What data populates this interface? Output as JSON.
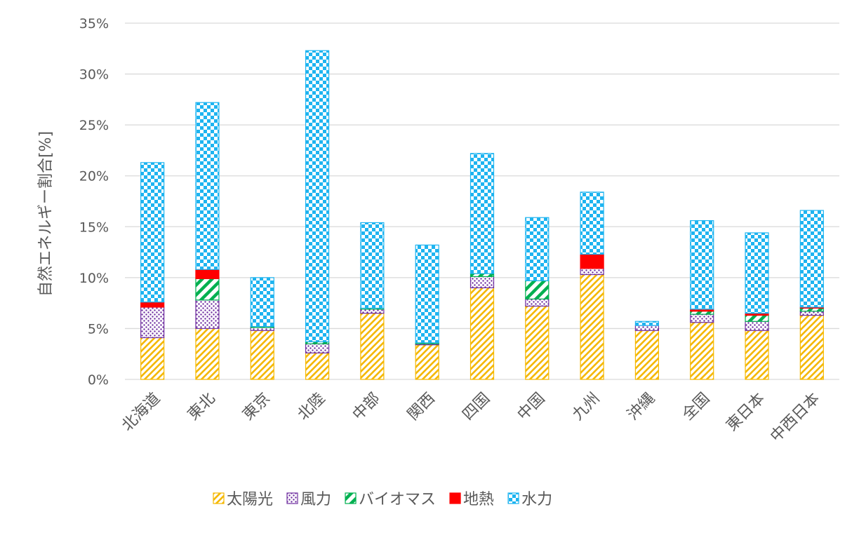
{
  "chart_data": {
    "type": "bar",
    "stacked": true,
    "title": "",
    "xlabel": "",
    "ylabel": "自然エネルギー割合[%]",
    "ylim": [
      0,
      35
    ],
    "y_ticks": [
      0,
      5,
      10,
      15,
      20,
      25,
      30,
      35
    ],
    "y_tick_labels": [
      "0%",
      "5%",
      "10%",
      "15%",
      "20%",
      "25%",
      "30%",
      "35%"
    ],
    "grid": true,
    "legend_position": "bottom",
    "categories": [
      "北海道",
      "東北",
      "東京",
      "北陸",
      "中部",
      "関西",
      "四国",
      "中国",
      "九州",
      "沖縄",
      "全国",
      "東日本",
      "中西日本"
    ],
    "series": [
      {
        "name": "太陽光",
        "color": "#f5b800",
        "pattern": "diagonal-hatch",
        "values": [
          4.1,
          5.0,
          4.8,
          2.6,
          6.5,
          3.4,
          9.0,
          7.2,
          10.3,
          4.8,
          5.6,
          4.8,
          6.3
        ]
      },
      {
        "name": "風力",
        "color": "#7030a0",
        "pattern": "dots",
        "values": [
          3.0,
          2.8,
          0.3,
          0.9,
          0.4,
          0.1,
          1.1,
          0.7,
          0.6,
          0.5,
          0.8,
          0.9,
          0.4
        ]
      },
      {
        "name": "バイオマス",
        "color": "#00b050",
        "pattern": "wide-diagonal",
        "values": [
          0.0,
          2.1,
          0.1,
          0.2,
          0.1,
          0.1,
          0.3,
          1.8,
          0.0,
          0.0,
          0.3,
          0.6,
          0.3
        ]
      },
      {
        "name": "地熱",
        "color": "#ff0000",
        "pattern": "solid",
        "values": [
          0.5,
          0.9,
          0.0,
          0.0,
          0.0,
          0.0,
          0.0,
          0.0,
          1.4,
          0.0,
          0.2,
          0.2,
          0.1
        ]
      },
      {
        "name": "水力",
        "color": "#1eb4f0",
        "pattern": "checker",
        "values": [
          13.7,
          16.4,
          4.8,
          28.6,
          8.4,
          9.6,
          11.8,
          6.2,
          6.1,
          0.4,
          8.7,
          7.9,
          9.5
        ]
      }
    ]
  }
}
